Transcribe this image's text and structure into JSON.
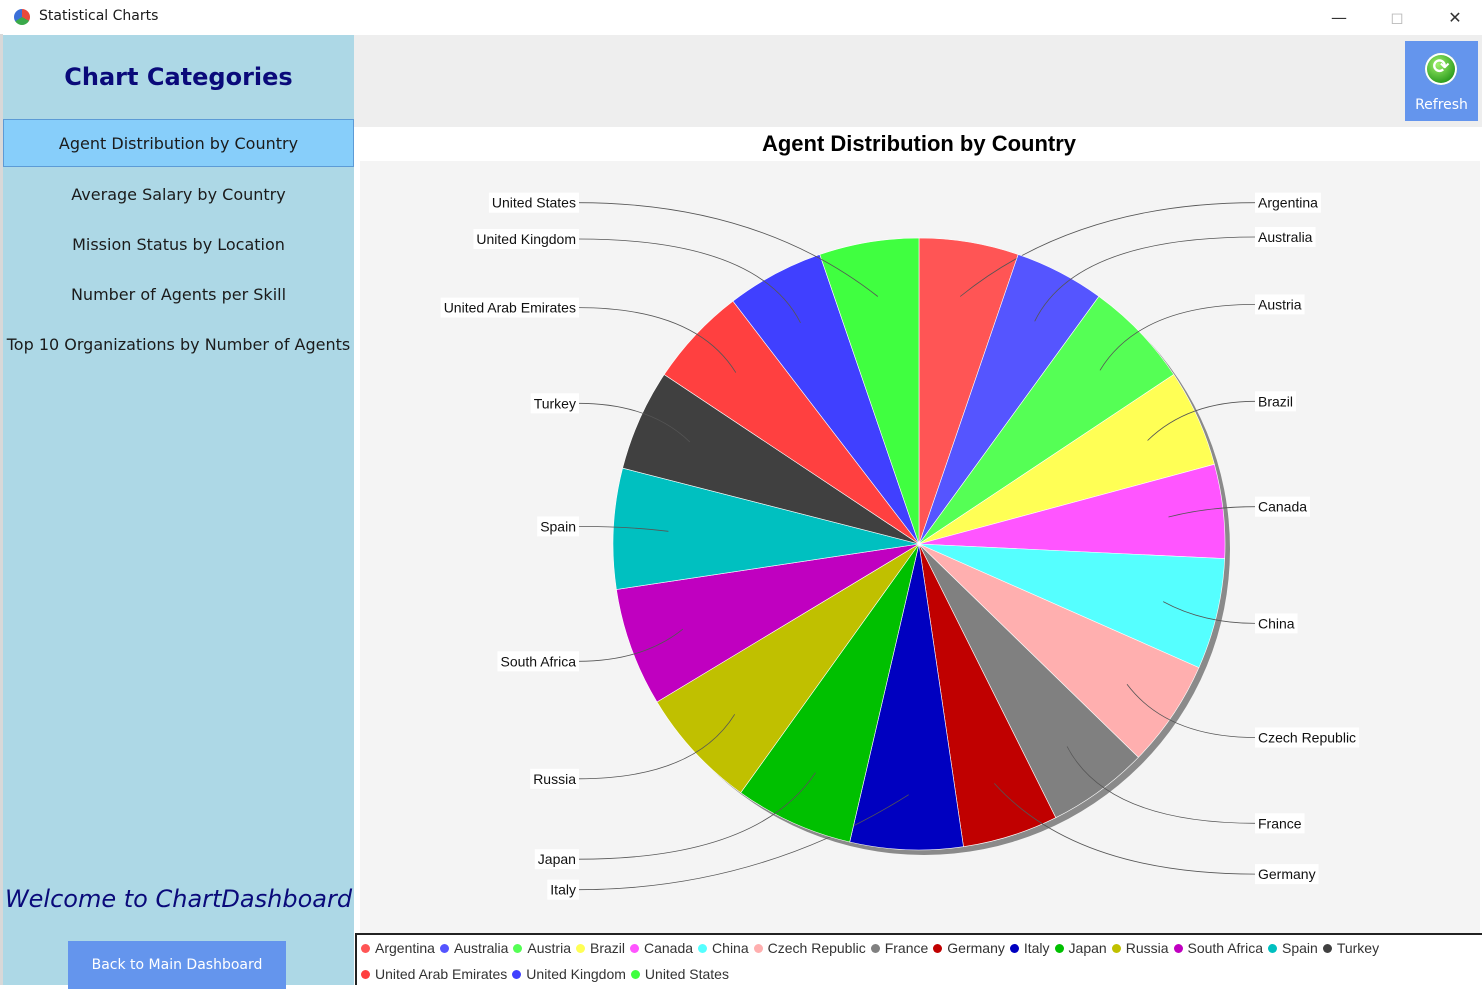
{
  "window": {
    "title": "Statistical Charts",
    "minimize_icon": "minimize-icon",
    "maximize_icon": "maximize-icon",
    "close_icon": "close-icon"
  },
  "sidebar": {
    "title": "Chart Categories",
    "items": [
      {
        "label": "Agent Distribution by Country",
        "active": true
      },
      {
        "label": "Average Salary by Country"
      },
      {
        "label": "Mission Status by Location"
      },
      {
        "label": "Number of Agents per Skill"
      },
      {
        "label": "Top 10 Organizations by Number of Agents"
      }
    ],
    "welcome": "Welcome to ChartDashboard",
    "back_button": "Back to Main Dashboard"
  },
  "toolbar": {
    "refresh_label": "Refresh",
    "refresh_icon": "refresh-icon"
  },
  "chart_data": {
    "type": "pie",
    "title": "Agent Distribution by Country",
    "categories": [
      "Argentina",
      "Australia",
      "Austria",
      "Brazil",
      "Canada",
      "China",
      "Czech Republic",
      "France",
      "Germany",
      "Italy",
      "Japan",
      "Russia",
      "South Africa",
      "Spain",
      "Turkey",
      "United Arab Emirates",
      "United Kingdom",
      "United States"
    ],
    "values": [
      5.2,
      4.7,
      5.6,
      5.1,
      4.9,
      5.8,
      5.6,
      5.3,
      5.0,
      5.9,
      6.2,
      6.4,
      6.2,
      6.3,
      5.3,
      5.2,
      5.1,
      5.2
    ],
    "colors": [
      "#ff5555",
      "#5555ff",
      "#55ff55",
      "#ffff55",
      "#ff55ff",
      "#55ffff",
      "#ffafaf",
      "#808080",
      "#c00000",
      "#0000c0",
      "#00c000",
      "#c0c000",
      "#c000c0",
      "#00c0c0",
      "#404040",
      "#ff4040",
      "#4040ff",
      "#40ff40"
    ],
    "legend_position": "bottom"
  }
}
